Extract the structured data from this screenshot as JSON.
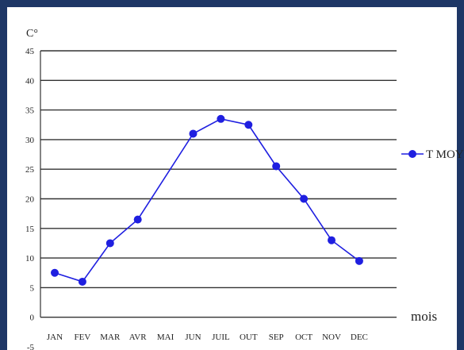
{
  "chart_data": {
    "type": "line",
    "ylabel": "C°",
    "xlabel": "mois",
    "categories": [
      "JAN",
      "FEV",
      "MAR",
      "AVR",
      "MAI",
      "JUN",
      "JUIL",
      "OUT",
      "SEP",
      "OCT",
      "NOV",
      "DEC"
    ],
    "series": [
      {
        "name": "T MOY",
        "color": "#1f1fe0",
        "values": [
          7.5,
          6,
          12.5,
          16.5,
          null,
          31,
          33.5,
          32.5,
          25.5,
          20,
          13,
          9.5
        ]
      }
    ],
    "ylim": [
      -5,
      45
    ],
    "yticks": [
      -5,
      0,
      5,
      10,
      15,
      20,
      25,
      30,
      35,
      40,
      45
    ],
    "grid": true,
    "legend_position": "right"
  }
}
